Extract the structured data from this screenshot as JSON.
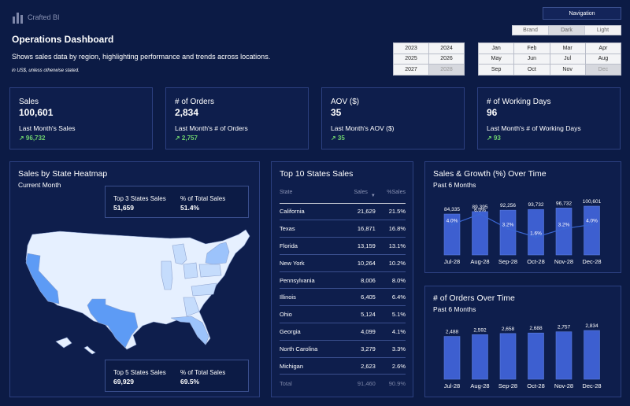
{
  "brand": {
    "name": "Crafted BI"
  },
  "header": {
    "title": "Operations Dashboard",
    "subtitle": "Shows sales data by region, highlighting performance and trends across locations.",
    "note": "in US$, unless otherwise stated."
  },
  "nav": {
    "label": "Navigation",
    "themes": [
      "Brand",
      "Dark",
      "Light"
    ],
    "selected_theme": "Dark"
  },
  "years": [
    "2023",
    "2024",
    "2025",
    "2026",
    "2027",
    "2028"
  ],
  "selected_year": "2028",
  "months": [
    "Jan",
    "Feb",
    "Mar",
    "Apr",
    "May",
    "Jun",
    "Jul",
    "Aug",
    "Sep",
    "Oct",
    "Nov",
    "Dec"
  ],
  "selected_month": "Dec",
  "kpis": [
    {
      "label": "Sales",
      "value": "100,601",
      "prev_label": "Last Month's Sales",
      "prev_value": "↗ 96,732"
    },
    {
      "label": "# of Orders",
      "value": "2,834",
      "prev_label": "Last Month's # of Orders",
      "prev_value": "↗ 2,757"
    },
    {
      "label": "AOV ($)",
      "value": "35",
      "prev_label": "Last Month's AOV ($)",
      "prev_value": "↗ 35"
    },
    {
      "label": "# of Working Days",
      "value": "96",
      "prev_label": "Last Month's # of Working Days",
      "prev_value": "↗ 93"
    }
  ],
  "heatmap": {
    "title": "Sales by State Heatmap",
    "subtitle": "Current Month",
    "top3": {
      "k1": "Top 3 States Sales",
      "v1": "51,659",
      "k2": "% of Total Sales",
      "v2": "51.4%"
    },
    "top5": {
      "k1": "Top 5 States Sales",
      "v1": "69,929",
      "k2": "% of Total Sales",
      "v2": "69.5%"
    },
    "colors": {
      "base": "#e6f0ff",
      "light": "#c5dcfc",
      "mid": "#9cc3fb",
      "high": "#5d9bf5",
      "top": "#3b82f6"
    }
  },
  "top_states": {
    "title": "Top 10 States Sales",
    "columns": [
      "State",
      "Sales",
      "%Sales"
    ],
    "rows": [
      [
        "California",
        "21,629",
        "21.5%"
      ],
      [
        "Texas",
        "16,871",
        "16.8%"
      ],
      [
        "Florida",
        "13,159",
        "13.1%"
      ],
      [
        "New York",
        "10,264",
        "10.2%"
      ],
      [
        "Pennsylvania",
        "8,006",
        "8.0%"
      ],
      [
        "Illinois",
        "6,405",
        "6.4%"
      ],
      [
        "Ohio",
        "5,124",
        "5.1%"
      ],
      [
        "Georgia",
        "4,099",
        "4.1%"
      ],
      [
        "North Carolina",
        "3,279",
        "3.3%"
      ],
      [
        "Michigan",
        "2,623",
        "2.6%"
      ]
    ],
    "total": [
      "Total",
      "91,460",
      "90.9%"
    ]
  },
  "chart_data": [
    {
      "type": "bar",
      "title": "Sales & Growth (%) Over Time",
      "subtitle": "Past 6 Months",
      "categories": [
        "Jul-28",
        "Aug-28",
        "Sep-28",
        "Oct-28",
        "Nov-28",
        "Dec-28"
      ],
      "values": [
        84335,
        89395,
        92256,
        93732,
        96732,
        100601
      ],
      "value_labels": [
        "84,335",
        "89,395",
        "92,256",
        "93,732",
        "96,732",
        "100,601"
      ],
      "growth": [
        4.0,
        6.0,
        3.2,
        1.6,
        3.2,
        4.0
      ],
      "growth_labels": [
        "4.0%",
        "6.0%",
        "3.2%",
        "1.6%",
        "3.2%",
        "4.0%"
      ],
      "bar_color": "#3d5fd0",
      "line_color": "#3b67d4"
    },
    {
      "type": "bar",
      "title": "# of Orders Over Time",
      "subtitle": "Past 6 Months",
      "categories": [
        "Jul-28",
        "Aug-28",
        "Sep-28",
        "Oct-28",
        "Nov-28",
        "Dec-28"
      ],
      "values": [
        2488,
        2592,
        2658,
        2688,
        2757,
        2834
      ],
      "value_labels": [
        "2,488",
        "2,592",
        "2,658",
        "2,688",
        "2,757",
        "2,834"
      ],
      "bar_color": "#3d5fd0"
    }
  ]
}
